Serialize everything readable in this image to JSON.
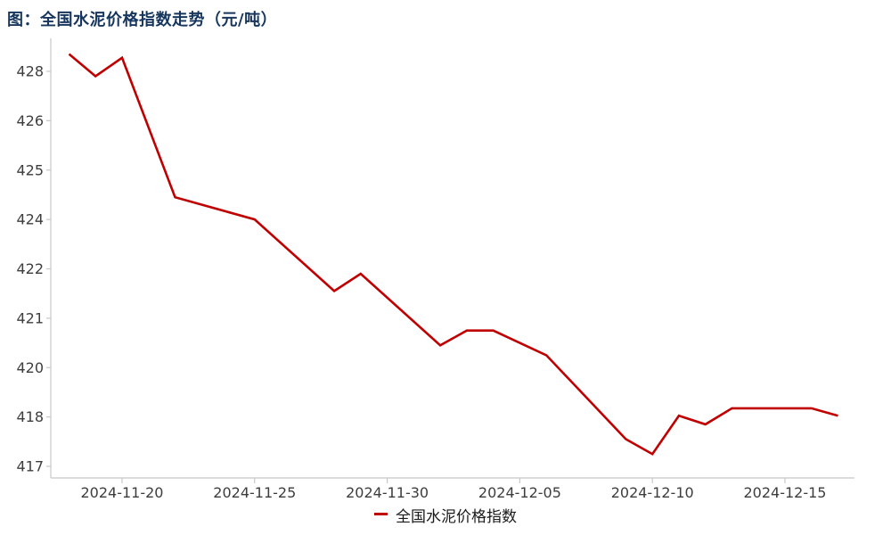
{
  "chart_data": {
    "type": "line",
    "title": "图：全国水泥价格指数走势（元/吨）",
    "title_color": "#17365d",
    "grid": false,
    "legend_position": "bottom-center",
    "x_axis": {
      "tick_labels": [
        "2024-11-20",
        "2024-11-25",
        "2024-11-30",
        "2024-12-05",
        "2024-12-10",
        "2024-12-15"
      ]
    },
    "y_axis": {
      "tick_labels": [
        "428",
        "426",
        "425",
        "424",
        "422",
        "421",
        "420",
        "418",
        "417"
      ],
      "nonlinear_even_spacing": true
    },
    "series": [
      {
        "name": "全国水泥价格指数",
        "color": "#c00000",
        "points": [
          {
            "date": "2024-11-18",
            "value": 428.7
          },
          {
            "date": "2024-11-19",
            "value": 427.8
          },
          {
            "date": "2024-11-20",
            "value": 428.55
          },
          {
            "date": "2024-11-22",
            "value": 424.45
          },
          {
            "date": "2024-11-25",
            "value": 424.0
          },
          {
            "date": "2024-11-28",
            "value": 421.55
          },
          {
            "date": "2024-11-29",
            "value": 421.9
          },
          {
            "date": "2024-12-02",
            "value": 420.45
          },
          {
            "date": "2024-12-03",
            "value": 420.75
          },
          {
            "date": "2024-12-04",
            "value": 420.75
          },
          {
            "date": "2024-12-06",
            "value": 420.25
          },
          {
            "date": "2024-12-09",
            "value": 417.55
          },
          {
            "date": "2024-12-10",
            "value": 417.25
          },
          {
            "date": "2024-12-11",
            "value": 418.05
          },
          {
            "date": "2024-12-12",
            "value": 417.85
          },
          {
            "date": "2024-12-13",
            "value": 418.35
          },
          {
            "date": "2024-12-16",
            "value": 418.35
          },
          {
            "date": "2024-12-17",
            "value": 418.05
          }
        ]
      }
    ]
  }
}
